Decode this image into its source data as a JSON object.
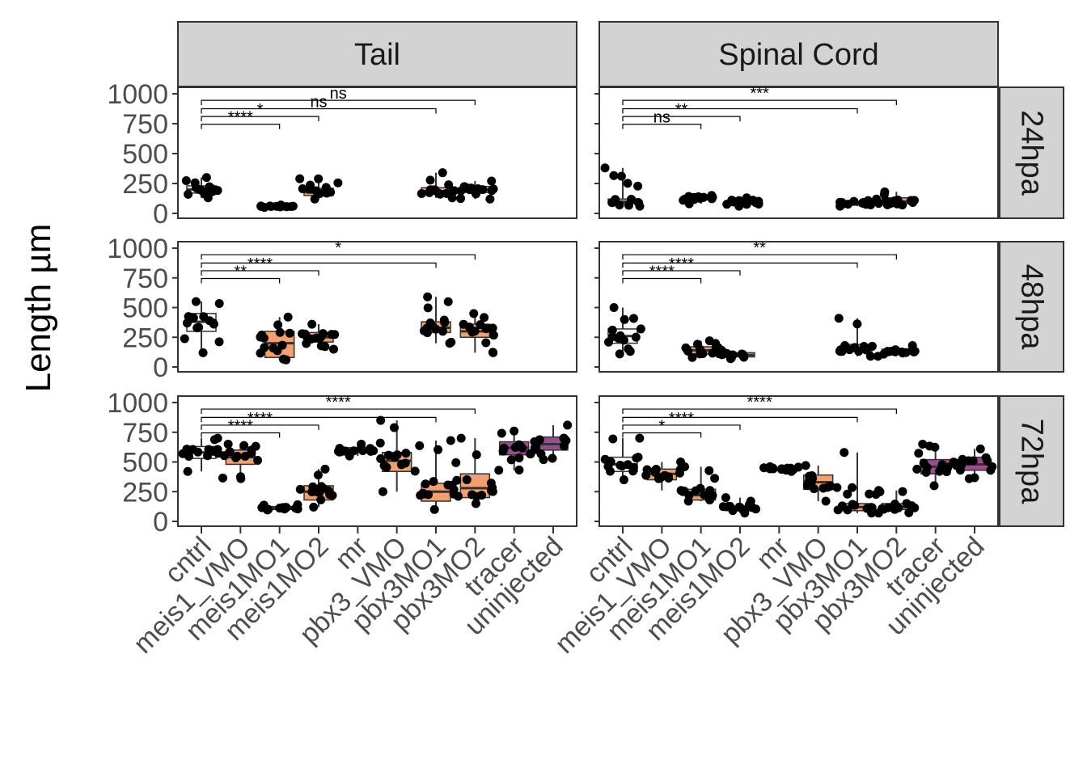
{
  "chart_data": {
    "type": "boxplot-jitter",
    "ylabel": "Length µm",
    "xlabel": "",
    "columns": [
      "Tail",
      "Spinal Cord"
    ],
    "rows": [
      "24hpa",
      "48hpa",
      "72hpa"
    ],
    "ylim": [
      0,
      1000
    ],
    "yticks": [
      0,
      250,
      500,
      750,
      1000
    ],
    "categories": [
      "cntrl",
      "meis1_VMO",
      "meis1MO1",
      "meis1MO2",
      "mr",
      "pbx3_VMO",
      "pbx3MO1",
      "pbx3MO2",
      "tracer",
      "uninjected"
    ],
    "fill_colors": {
      "cntrl": "#ffffff",
      "meis1_VMO": "#f4a06e",
      "meis1MO1": "#f4a06e",
      "meis1MO2": "#f4a06e",
      "mr": "#8c8c8c",
      "pbx3_VMO": "#f4a06e",
      "pbx3MO1": "#f4a06e",
      "pbx3MO2": "#f4a06e",
      "tracer": "#9a4d8e",
      "uninjected": "#9a4d8e"
    },
    "panels": [
      {
        "column": "Tail",
        "row": "24hpa",
        "boxes": [
          {
            "category": "cntrl",
            "q1": 170,
            "median": 200,
            "q3": 230,
            "low": 130,
            "high": 300
          },
          {
            "category": "meis1MO1",
            "q1": 55,
            "median": 60,
            "q3": 65,
            "low": 50,
            "high": 70
          },
          {
            "category": "meis1MO2",
            "q1": 150,
            "median": 180,
            "q3": 210,
            "low": 120,
            "high": 290
          },
          {
            "category": "pbx3MO1",
            "q1": 160,
            "median": 185,
            "q3": 215,
            "low": 130,
            "high": 340
          },
          {
            "category": "pbx3MO2",
            "q1": 175,
            "median": 200,
            "q3": 225,
            "low": 120,
            "high": 270
          }
        ],
        "comparisons": [
          {
            "category": "meis1MO1",
            "label": "****"
          },
          {
            "category": "meis1MO2",
            "label": "*"
          },
          {
            "category": "pbx3MO1",
            "label": "ns"
          },
          {
            "category": "pbx3MO2",
            "label": "ns"
          }
        ]
      },
      {
        "column": "Spinal Cord",
        "row": "24hpa",
        "boxes": [
          {
            "category": "cntrl",
            "q1": 85,
            "median": 100,
            "q3": 120,
            "low": 60,
            "high": 380
          },
          {
            "category": "meis1MO1",
            "q1": 115,
            "median": 130,
            "q3": 145,
            "low": 80,
            "high": 150
          },
          {
            "category": "meis1MO2",
            "q1": 75,
            "median": 90,
            "q3": 105,
            "low": 60,
            "high": 130
          },
          {
            "category": "pbx3MO1",
            "q1": 70,
            "median": 80,
            "q3": 95,
            "low": 60,
            "high": 120
          },
          {
            "category": "pbx3MO2",
            "q1": 80,
            "median": 100,
            "q3": 130,
            "low": 70,
            "high": 180
          }
        ],
        "comparisons": [
          {
            "category": "meis1MO1",
            "label": "ns"
          },
          {
            "category": "meis1MO2",
            "label": "**"
          },
          {
            "category": "pbx3MO1",
            "label": ""
          },
          {
            "category": "pbx3MO2",
            "label": "***"
          }
        ]
      },
      {
        "column": "Tail",
        "row": "48hpa",
        "boxes": [
          {
            "category": "cntrl",
            "q1": 300,
            "median": 380,
            "q3": 450,
            "low": 120,
            "high": 550
          },
          {
            "category": "meis1MO1",
            "q1": 80,
            "median": 200,
            "q3": 300,
            "low": 60,
            "high": 420
          },
          {
            "category": "meis1MO2",
            "q1": 210,
            "median": 250,
            "q3": 290,
            "low": 150,
            "high": 360
          },
          {
            "category": "pbx3MO1",
            "q1": 290,
            "median": 330,
            "q3": 380,
            "low": 200,
            "high": 590
          },
          {
            "category": "pbx3MO2",
            "q1": 250,
            "median": 300,
            "q3": 360,
            "low": 120,
            "high": 450
          }
        ],
        "comparisons": [
          {
            "category": "meis1MO1",
            "label": "**"
          },
          {
            "category": "meis1MO2",
            "label": "****"
          },
          {
            "category": "pbx3MO1",
            "label": ""
          },
          {
            "category": "pbx3MO2",
            "label": "*"
          }
        ]
      },
      {
        "column": "Spinal Cord",
        "row": "48hpa",
        "boxes": [
          {
            "category": "cntrl",
            "q1": 200,
            "median": 260,
            "q3": 320,
            "low": 110,
            "high": 500
          },
          {
            "category": "meis1MO1",
            "q1": 110,
            "median": 140,
            "q3": 170,
            "low": 80,
            "high": 220
          },
          {
            "category": "meis1MO2",
            "q1": 85,
            "median": 100,
            "q3": 120,
            "low": 70,
            "high": 140
          },
          {
            "category": "pbx3MO1",
            "q1": 130,
            "median": 160,
            "q3": 190,
            "low": 90,
            "high": 410
          },
          {
            "category": "pbx3MO2",
            "q1": 110,
            "median": 130,
            "q3": 150,
            "low": 90,
            "high": 180
          }
        ],
        "comparisons": [
          {
            "category": "meis1MO1",
            "label": "****"
          },
          {
            "category": "meis1MO2",
            "label": "****"
          },
          {
            "category": "pbx3MO1",
            "label": ""
          },
          {
            "category": "pbx3MO2",
            "label": "**"
          }
        ]
      },
      {
        "column": "Tail",
        "row": "72hpa",
        "boxes": [
          {
            "category": "cntrl",
            "q1": 530,
            "median": 580,
            "q3": 630,
            "low": 420,
            "high": 700
          },
          {
            "category": "meis1_VMO",
            "q1": 480,
            "median": 540,
            "q3": 600,
            "low": 360,
            "high": 650
          },
          {
            "category": "meis1MO1",
            "q1": 100,
            "median": 110,
            "q3": 125,
            "low": 95,
            "high": 140
          },
          {
            "category": "meis1MO2",
            "q1": 180,
            "median": 250,
            "q3": 300,
            "low": 120,
            "high": 440
          },
          {
            "category": "mr",
            "q1": 580,
            "median": 600,
            "q3": 620,
            "low": 550,
            "high": 650
          },
          {
            "category": "pbx3_VMO",
            "q1": 420,
            "median": 510,
            "q3": 580,
            "low": 250,
            "high": 850
          },
          {
            "category": "pbx3MO1",
            "q1": 170,
            "median": 250,
            "q3": 320,
            "low": 100,
            "high": 680
          },
          {
            "category": "pbx3MO2",
            "q1": 200,
            "median": 280,
            "q3": 400,
            "low": 150,
            "high": 700
          },
          {
            "category": "tracer",
            "q1": 560,
            "median": 620,
            "q3": 670,
            "low": 430,
            "high": 760
          },
          {
            "category": "uninjected",
            "q1": 600,
            "median": 650,
            "q3": 710,
            "low": 520,
            "high": 810
          }
        ],
        "comparisons": [
          {
            "category": "meis1MO1",
            "label": "****"
          },
          {
            "category": "meis1MO2",
            "label": "****"
          },
          {
            "category": "pbx3MO1",
            "label": ""
          },
          {
            "category": "pbx3MO2",
            "label": "****"
          }
        ]
      },
      {
        "column": "Spinal Cord",
        "row": "72hpa",
        "boxes": [
          {
            "category": "cntrl",
            "q1": 420,
            "median": 480,
            "q3": 540,
            "low": 350,
            "high": 700
          },
          {
            "category": "meis1_VMO",
            "q1": 350,
            "median": 400,
            "q3": 440,
            "low": 260,
            "high": 500
          },
          {
            "category": "meis1MO1",
            "q1": 180,
            "median": 220,
            "q3": 270,
            "low": 170,
            "high": 460
          },
          {
            "category": "meis1MO2",
            "q1": 90,
            "median": 110,
            "q3": 130,
            "low": 70,
            "high": 200
          },
          {
            "category": "mr",
            "q1": 430,
            "median": 440,
            "q3": 450,
            "low": 420,
            "high": 460
          },
          {
            "category": "pbx3_VMO",
            "q1": 270,
            "median": 330,
            "q3": 390,
            "low": 170,
            "high": 470
          },
          {
            "category": "pbx3MO1",
            "q1": 90,
            "median": 120,
            "q3": 150,
            "low": 70,
            "high": 580
          },
          {
            "category": "pbx3MO2",
            "q1": 100,
            "median": 120,
            "q3": 150,
            "low": 70,
            "high": 260
          },
          {
            "category": "tracer",
            "q1": 400,
            "median": 460,
            "q3": 520,
            "low": 300,
            "high": 650
          },
          {
            "category": "uninjected",
            "q1": 430,
            "median": 480,
            "q3": 540,
            "low": 360,
            "high": 610
          }
        ],
        "comparisons": [
          {
            "category": "meis1MO1",
            "label": "*"
          },
          {
            "category": "meis1MO2",
            "label": "****"
          },
          {
            "category": "pbx3MO1",
            "label": ""
          },
          {
            "category": "pbx3MO2",
            "label": "****"
          }
        ]
      }
    ]
  }
}
